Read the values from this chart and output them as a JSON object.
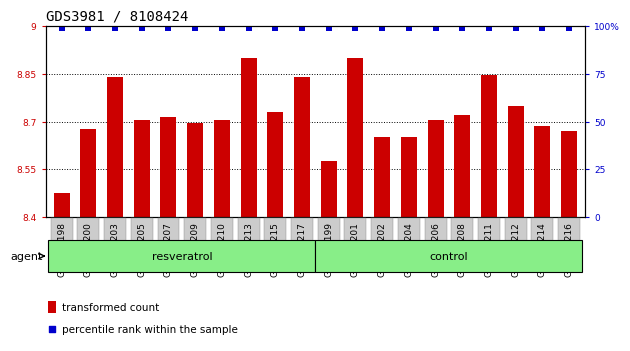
{
  "title": "GDS3981 / 8108424",
  "categories": [
    "GSM801198",
    "GSM801200",
    "GSM801203",
    "GSM801205",
    "GSM801207",
    "GSM801209",
    "GSM801210",
    "GSM801213",
    "GSM801215",
    "GSM801217",
    "GSM801199",
    "GSM801201",
    "GSM801202",
    "GSM801204",
    "GSM801206",
    "GSM801208",
    "GSM801211",
    "GSM801212",
    "GSM801214",
    "GSM801216"
  ],
  "bar_values": [
    8.475,
    8.675,
    8.84,
    8.705,
    8.715,
    8.695,
    8.705,
    8.9,
    8.73,
    8.84,
    8.575,
    8.9,
    8.65,
    8.65,
    8.705,
    8.72,
    8.845,
    8.75,
    8.685,
    8.67
  ],
  "percentile_values": [
    99,
    99,
    99,
    99,
    99,
    99,
    99,
    99,
    99,
    99,
    99,
    99,
    99,
    99,
    99,
    99,
    99,
    99,
    99,
    99
  ],
  "bar_color": "#cc0000",
  "percentile_color": "#0000cc",
  "ylim_left": [
    8.4,
    9.0
  ],
  "ylim_right": [
    0,
    100
  ],
  "yticks_left": [
    8.4,
    8.55,
    8.7,
    8.85,
    9.0
  ],
  "ytick_labels_left": [
    "8.4",
    "8.55",
    "8.7",
    "8.85",
    "9"
  ],
  "yticks_right": [
    0,
    25,
    50,
    75,
    100
  ],
  "ytick_labels_right": [
    "0",
    "25",
    "50",
    "75",
    "100%"
  ],
  "resveratrol_count": 10,
  "control_count": 10,
  "group_label_resveratrol": "resveratrol",
  "group_label_control": "control",
  "agent_label": "agent",
  "legend_bar_label": "transformed count",
  "legend_percentile_label": "percentile rank within the sample",
  "group_bg_color": "#88ee88",
  "tick_bg_color": "#cccccc",
  "title_fontsize": 10,
  "tick_label_fontsize": 6.5
}
